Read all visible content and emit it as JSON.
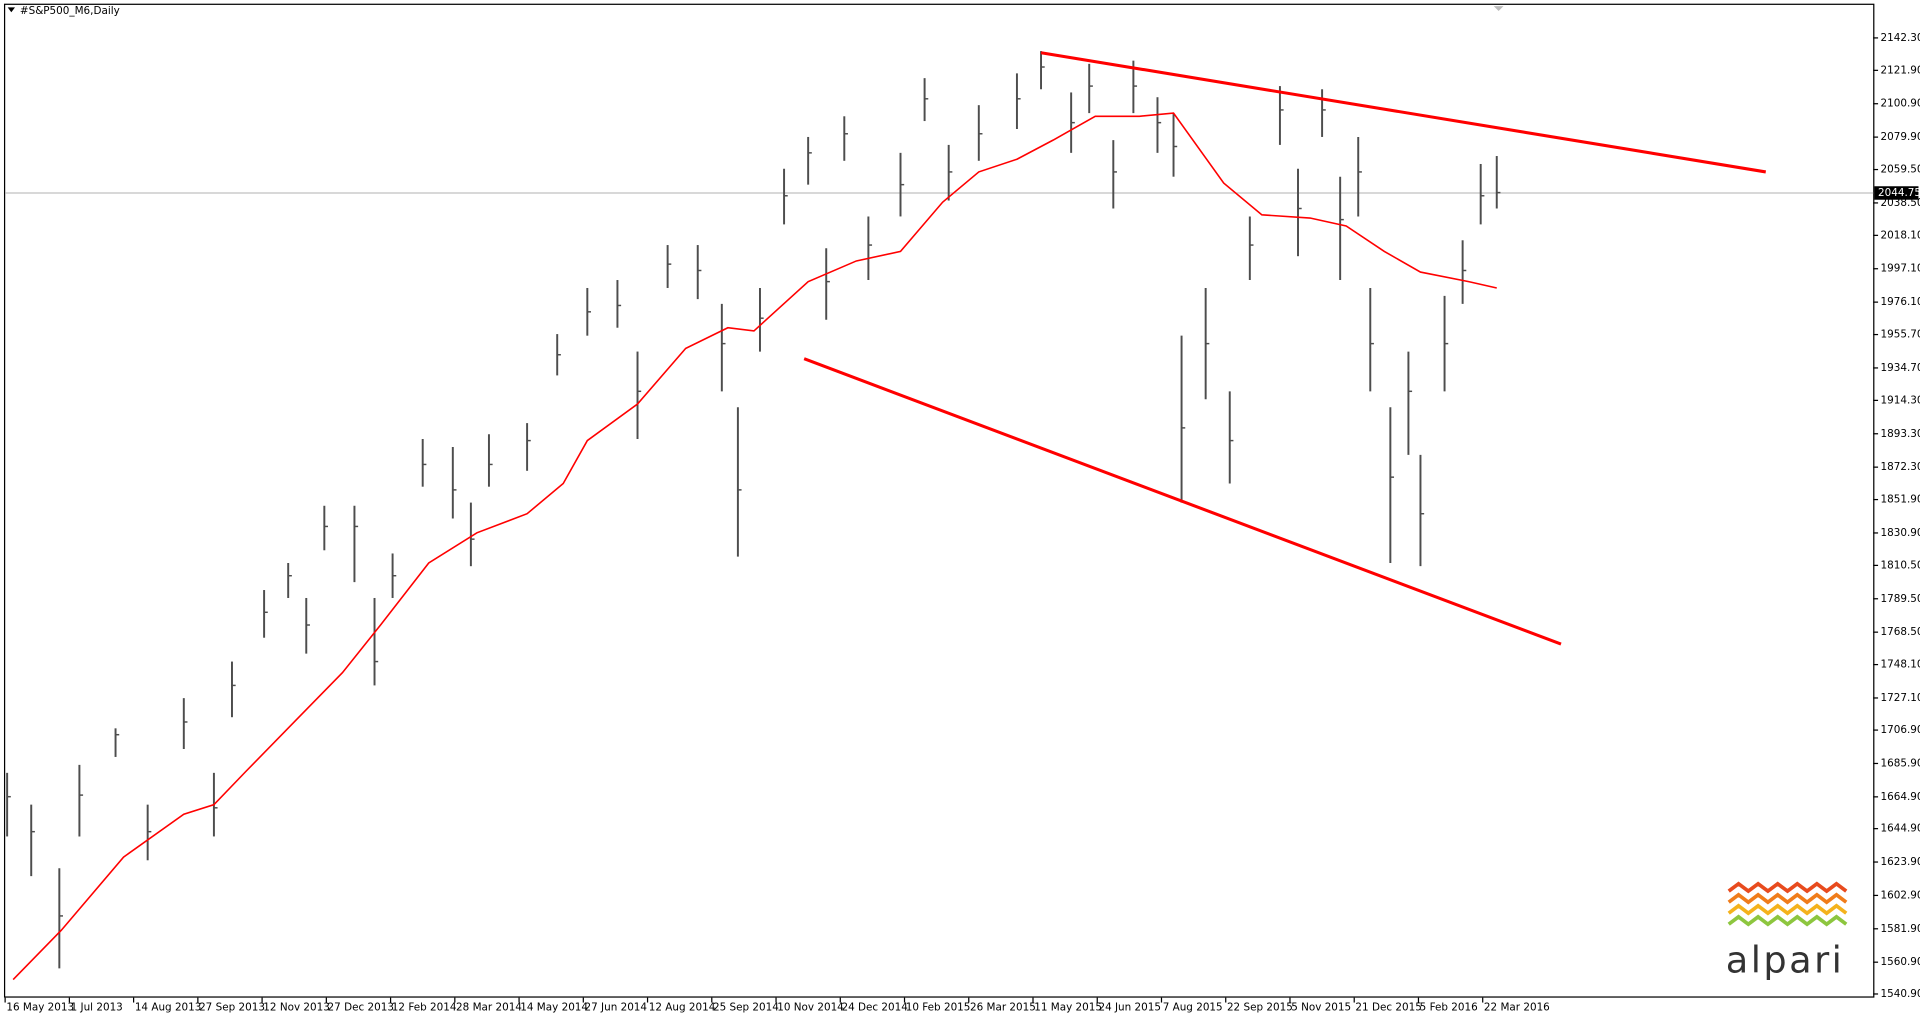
{
  "chart_data": {
    "type": "ohlc",
    "title": "#S&P500_M6,Daily",
    "color": "#4d4d4d",
    "x": [
      1,
      13,
      27,
      37,
      55,
      71,
      89,
      104,
      113,
      129,
      141,
      150,
      159,
      174,
      184,
      193,
      208,
      223,
      232,
      241,
      260,
      275,
      290,
      305,
      315,
      330,
      345,
      357,
      365,
      376,
      388,
      400,
      409,
      418,
      430,
      446,
      458,
      470,
      485,
      504,
      516,
      531,
      540,
      552,
      562,
      574,
      582,
      586,
      598,
      610,
      620,
      635,
      644,
      656,
      665,
      674,
      680,
      690,
      699,
      705,
      717,
      726,
      735,
      743
    ],
    "high": [
      1680,
      1660,
      1620,
      1685,
      1708,
      1660,
      1727,
      1680,
      1750,
      1795,
      1812,
      1790,
      1848,
      1848,
      1790,
      1818,
      1890,
      1885,
      1850,
      1893,
      1900,
      1956,
      1985,
      1990,
      1945,
      2012,
      2012,
      1975,
      1910,
      1985,
      2060,
      2080,
      2010,
      2093,
      2030,
      2070,
      2117,
      2075,
      2100,
      2120,
      2134,
      2108,
      2126,
      2078,
      2128,
      2105,
      2095,
      1955,
      1985,
      1920,
      2030,
      2112,
      2060,
      2110,
      2055,
      2080,
      1985,
      1910,
      1945,
      1880,
      1980,
      2015,
      2063,
      2068
    ],
    "low": [
      1640,
      1615,
      1557,
      1640,
      1690,
      1625,
      1695,
      1640,
      1715,
      1765,
      1790,
      1755,
      1820,
      1800,
      1735,
      1790,
      1860,
      1840,
      1810,
      1860,
      1870,
      1930,
      1955,
      1960,
      1890,
      1985,
      1978,
      1920,
      1816,
      1945,
      2025,
      2050,
      1965,
      2065,
      1990,
      2030,
      2090,
      2040,
      2065,
      2085,
      2110,
      2070,
      2095,
      2035,
      2095,
      2070,
      2055,
      1850,
      1915,
      1862,
      1990,
      2075,
      2005,
      2080,
      1990,
      2030,
      1920,
      1812,
      1880,
      1810,
      1920,
      1975,
      2025,
      2035
    ],
    "close": [
      1665,
      1643,
      1590,
      1666,
      1704,
      1643,
      1712,
      1658,
      1735,
      1781,
      1804,
      1773,
      1835,
      1835,
      1750,
      1804,
      1874,
      1858,
      1827,
      1874,
      1889,
      1943,
      1970,
      1974,
      1920,
      2000,
      1996,
      1950,
      1858,
      1966,
      2043,
      2070,
      1989,
      2082,
      2012,
      2050,
      2104,
      2058,
      2082,
      2104,
      2124,
      2089,
      2112,
      2058,
      2112,
      2089,
      2074,
      1897,
      1950,
      1889,
      2012,
      2097,
      2035,
      2097,
      2028,
      2058,
      1950,
      1866,
      1920,
      1843,
      1950,
      1996,
      2043,
      2045
    ],
    "ma": {
      "color": "#ff0000",
      "x": [
        4,
        28,
        59,
        89,
        104,
        120,
        144,
        168,
        187,
        211,
        235,
        260,
        278,
        290,
        315,
        339,
        360,
        373,
        400,
        424,
        446,
        467,
        485,
        504,
        522,
        543,
        565,
        582,
        607,
        626,
        650,
        668,
        687,
        705,
        729,
        743
      ],
      "values": [
        1550,
        1581,
        1627,
        1654,
        1660,
        1681,
        1712,
        1743,
        1773,
        1812,
        1831,
        1843,
        1862,
        1889,
        1912,
        1947,
        1960,
        1958,
        1989,
        2002,
        2008,
        2039,
        2058,
        2066,
        2078,
        2093,
        2093,
        2095,
        2051,
        2031,
        2029,
        2024,
        2008,
        1995,
        1989,
        1985
      ]
    },
    "trendlines": [
      {
        "color": "#ff0000",
        "x": [
          516,
          877
        ],
        "values": [
          2133,
          2058
        ]
      },
      {
        "color": "#ff0000",
        "x": [
          398,
          775
        ],
        "values": [
          1940.5,
          1761
        ]
      }
    ],
    "last_price": 2044.75,
    "xlim": [
      -2.4,
      930.5
    ],
    "ylim": [
      1538.6,
      2162.3
    ],
    "yticks": [
      {
        "value": 1540.9,
        "label": "1540.90"
      },
      {
        "value": 1560.9,
        "label": "1560.90"
      },
      {
        "value": 1581.9,
        "label": "1581.90"
      },
      {
        "value": 1602.9,
        "label": "1602.90"
      },
      {
        "value": 1623.9,
        "label": "1623.90"
      },
      {
        "value": 1644.9,
        "label": "1644.90"
      },
      {
        "value": 1664.9,
        "label": "1664.90"
      },
      {
        "value": 1685.9,
        "label": "1685.90"
      },
      {
        "value": 1706.9,
        "label": "1706.90"
      },
      {
        "value": 1727.1,
        "label": "1727.10"
      },
      {
        "value": 1748.1,
        "label": "1748.10"
      },
      {
        "value": 1768.5,
        "label": "1768.50"
      },
      {
        "value": 1789.5,
        "label": "1789.50"
      },
      {
        "value": 1810.5,
        "label": "1810.50"
      },
      {
        "value": 1830.9,
        "label": "1830.90"
      },
      {
        "value": 1851.9,
        "label": "1851.90"
      },
      {
        "value": 1872.3,
        "label": "1872.30"
      },
      {
        "value": 1893.3,
        "label": "1893.30"
      },
      {
        "value": 1914.3,
        "label": "1914.30"
      },
      {
        "value": 1934.7,
        "label": "1934.70"
      },
      {
        "value": 1955.7,
        "label": "1955.70"
      },
      {
        "value": 1976.1,
        "label": "1976.10"
      },
      {
        "value": 1997.1,
        "label": "1997.10"
      },
      {
        "value": 2018.1,
        "label": "2018.10"
      },
      {
        "value": 2038.5,
        "label": "2038.50"
      },
      {
        "value": 2059.5,
        "label": "2059.50"
      },
      {
        "value": 2079.9,
        "label": "2079.90"
      },
      {
        "value": 2100.9,
        "label": "2100.90"
      },
      {
        "value": 2121.9,
        "label": "2121.90"
      },
      {
        "value": 2142.3,
        "label": "2142.30"
      }
    ],
    "xticks": [
      {
        "value": 0,
        "label": "16 May 2013"
      },
      {
        "value": 32,
        "label": "1 Jul 2013"
      },
      {
        "value": 64,
        "label": "14 Aug 2013"
      },
      {
        "value": 96,
        "label": "27 Sep 2013"
      },
      {
        "value": 128,
        "label": "12 Nov 2013"
      },
      {
        "value": 160,
        "label": "27 Dec 2013"
      },
      {
        "value": 192,
        "label": "12 Feb 2014"
      },
      {
        "value": 224,
        "label": "28 Mar 2014"
      },
      {
        "value": 256,
        "label": "14 May 2014"
      },
      {
        "value": 288,
        "label": "27 Jun 2014"
      },
      {
        "value": 320,
        "label": "12 Aug 2014"
      },
      {
        "value": 352,
        "label": "25 Sep 2014"
      },
      {
        "value": 384,
        "label": "10 Nov 2014"
      },
      {
        "value": 416,
        "label": "24 Dec 2014"
      },
      {
        "value": 448,
        "label": "10 Feb 2015"
      },
      {
        "value": 480,
        "label": "26 Mar 2015"
      },
      {
        "value": 512,
        "label": "11 May 2015"
      },
      {
        "value": 544,
        "label": "24 Jun 2015"
      },
      {
        "value": 576,
        "label": "7 Aug 2015"
      },
      {
        "value": 608,
        "label": "22 Sep 2015"
      },
      {
        "value": 640,
        "label": "5 Nov 2015"
      },
      {
        "value": 672,
        "label": "21 Dec 2015"
      },
      {
        "value": 704,
        "label": "5 Feb 2016"
      },
      {
        "value": 736,
        "label": "22 Mar 2016"
      }
    ]
  },
  "logo": "alpari"
}
